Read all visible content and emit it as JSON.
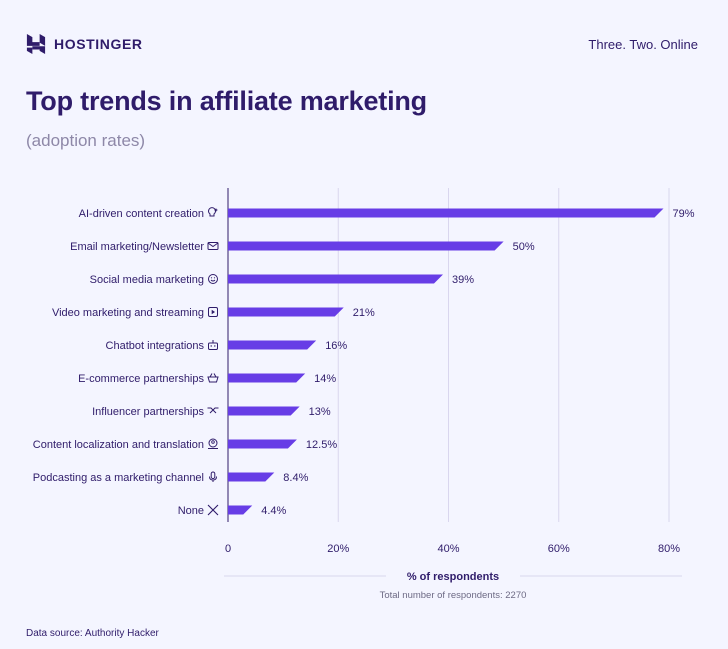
{
  "brand": {
    "name": "HOSTINGER",
    "tagline": "Three. Two. Online"
  },
  "title": "Top trends in affiliate marketing",
  "subtitle": "(adoption rates)",
  "source": "Data source: Authority Hacker",
  "colors": {
    "bar": "#673de6",
    "text": "#2f1c6a",
    "grid": "#d9d6ee",
    "background": "#f4f5ff"
  },
  "chart_data": {
    "type": "bar",
    "orientation": "horizontal",
    "categories": [
      "AI-driven content creation",
      "Email marketing/Newsletter",
      "Social media marketing",
      "Video marketing and streaming",
      "Chatbot integrations",
      "E-commerce partnerships",
      "Influencer partnerships",
      "Content localization and translation",
      "Podcasting as a marketing channel",
      "None"
    ],
    "icons": [
      "lightbulb-sparkle-icon",
      "envelope-icon",
      "smiley-icon",
      "video-play-icon",
      "robot-icon",
      "basket-icon",
      "handshake-icon",
      "location-person-icon",
      "microphone-icon",
      "x-icon"
    ],
    "values": [
      79,
      50,
      39,
      21,
      16,
      14,
      13,
      12.5,
      8.4,
      4.4
    ],
    "value_labels": [
      "79%",
      "50%",
      "39%",
      "21%",
      "16%",
      "14%",
      "13%",
      "12.5%",
      "8.4%",
      "4.4%"
    ],
    "xlim": [
      0,
      80
    ],
    "xticks": [
      0,
      20,
      40,
      60,
      80
    ],
    "xtick_labels": [
      "0",
      "20%",
      "40%",
      "60%",
      "80%"
    ],
    "xlabel": "% of respondents",
    "note": "Total number of respondents: 2270",
    "grid": true
  }
}
